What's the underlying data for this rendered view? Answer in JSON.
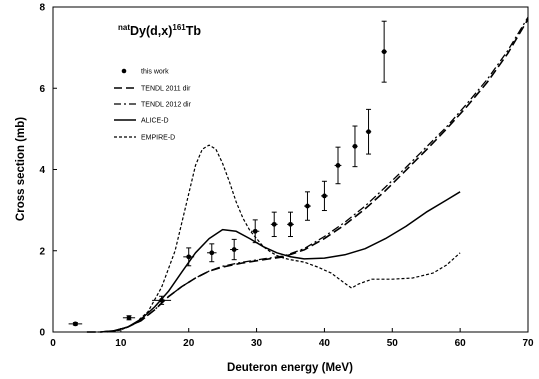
{
  "chart_data": {
    "type": "line",
    "title": {
      "pre_sup": "nat",
      "main1": "Dy(d,x)",
      "mid_sup": "161",
      "main2": "Tb"
    },
    "xlabel": "Deuteron energy (MeV)",
    "ylabel": "Cross section (mb)",
    "xlim": [
      0,
      70
    ],
    "ylim": [
      0,
      8
    ],
    "x_ticks": [
      "0",
      "10",
      "20",
      "30",
      "40",
      "50",
      "60",
      "70"
    ],
    "y_ticks": [
      "0",
      "2",
      "4",
      "6",
      "8"
    ],
    "grid": false,
    "legend_position": "upper-left",
    "legend": [
      {
        "label": "this work",
        "style": "marker"
      },
      {
        "label": "TENDL 2011 dir",
        "style": "long-dash"
      },
      {
        "label": "TENDL 2012 dir",
        "style": "dash-dot"
      },
      {
        "label": "ALICE-D",
        "style": "solid"
      },
      {
        "label": "EMPIRE-D",
        "style": "short-dash"
      }
    ],
    "measured": {
      "name": "this work",
      "points": [
        {
          "x": 3.3,
          "y": 0.2,
          "xerr": 1.0,
          "yerr": 0.03
        },
        {
          "x": 11.2,
          "y": 0.35,
          "xerr": 0.9,
          "yerr": 0.05
        },
        {
          "x": 16.0,
          "y": 0.78,
          "xerr": 1.4,
          "yerr": 0.1
        },
        {
          "x": 20.0,
          "y": 1.85,
          "xerr": 0.8,
          "yerr": 0.22
        },
        {
          "x": 23.4,
          "y": 1.95,
          "xerr": 0.7,
          "yerr": 0.22
        },
        {
          "x": 26.7,
          "y": 2.03,
          "xerr": 0.6,
          "yerr": 0.25
        },
        {
          "x": 29.8,
          "y": 2.48,
          "xerr": 0.6,
          "yerr": 0.28
        },
        {
          "x": 32.6,
          "y": 2.65,
          "xerr": 0.5,
          "yerr": 0.3
        },
        {
          "x": 35.0,
          "y": 2.65,
          "xerr": 0.5,
          "yerr": 0.3
        },
        {
          "x": 37.5,
          "y": 3.1,
          "xerr": 0.5,
          "yerr": 0.35
        },
        {
          "x": 40.0,
          "y": 3.35,
          "xerr": 0.5,
          "yerr": 0.36
        },
        {
          "x": 42.0,
          "y": 4.1,
          "xerr": 0.5,
          "yerr": 0.45
        },
        {
          "x": 44.5,
          "y": 4.57,
          "xerr": 0.4,
          "yerr": 0.5
        },
        {
          "x": 46.5,
          "y": 4.93,
          "xerr": 0.4,
          "yerr": 0.55
        },
        {
          "x": 48.8,
          "y": 6.9,
          "xerr": 0.4,
          "yerr": 0.75
        }
      ]
    },
    "series": [
      {
        "name": "TENDL 2011 dir",
        "style": "long-dash",
        "x": [
          5,
          7,
          9,
          11,
          13,
          15,
          17,
          19,
          21,
          23,
          25,
          28,
          31,
          34,
          37,
          40,
          43,
          46,
          49,
          52,
          55,
          58,
          61,
          64,
          67,
          70
        ],
        "y": [
          0.0,
          0.0,
          0.03,
          0.12,
          0.28,
          0.55,
          0.87,
          1.12,
          1.33,
          1.5,
          1.6,
          1.7,
          1.78,
          1.85,
          2.02,
          2.3,
          2.64,
          3.03,
          3.48,
          3.98,
          4.48,
          5.0,
          5.55,
          6.15,
          6.85,
          7.7
        ]
      },
      {
        "name": "TENDL 2012 dir",
        "style": "dash-dot",
        "x": [
          5,
          7,
          9,
          11,
          13,
          15,
          17,
          19,
          21,
          23,
          25,
          28,
          31,
          34,
          37,
          40,
          43,
          46,
          49,
          52,
          55,
          58,
          61,
          64,
          67,
          70
        ],
        "y": [
          0.0,
          0.0,
          0.03,
          0.12,
          0.28,
          0.55,
          0.87,
          1.12,
          1.33,
          1.5,
          1.62,
          1.72,
          1.8,
          1.87,
          2.05,
          2.35,
          2.7,
          3.1,
          3.57,
          4.05,
          4.55,
          5.05,
          5.62,
          6.22,
          6.92,
          7.75
        ]
      },
      {
        "name": "ALICE-D",
        "style": "solid",
        "x": [
          7,
          9,
          11,
          13,
          15,
          17,
          19,
          21,
          23,
          25,
          27,
          29,
          31,
          33,
          35,
          37,
          40,
          43,
          46,
          49,
          52,
          55,
          58,
          60
        ],
        "y": [
          0.0,
          0.03,
          0.12,
          0.32,
          0.62,
          1.0,
          1.48,
          1.95,
          2.3,
          2.52,
          2.48,
          2.3,
          2.1,
          1.95,
          1.85,
          1.8,
          1.82,
          1.9,
          2.05,
          2.3,
          2.6,
          2.95,
          3.25,
          3.45
        ]
      },
      {
        "name": "EMPIRE-D",
        "style": "short-dash",
        "x": [
          8,
          10,
          12,
          14,
          16,
          18,
          20,
          21,
          22,
          23,
          24,
          25,
          26,
          27,
          28,
          29,
          30,
          31,
          32,
          33,
          34,
          35,
          37,
          39,
          41,
          43,
          44,
          45,
          47,
          50,
          53,
          56,
          58,
          60
        ],
        "y": [
          0.0,
          0.05,
          0.2,
          0.5,
          1.1,
          2.0,
          3.4,
          4.1,
          4.5,
          4.6,
          4.5,
          4.15,
          3.7,
          3.2,
          2.8,
          2.5,
          2.3,
          2.1,
          1.98,
          1.88,
          1.82,
          1.78,
          1.72,
          1.6,
          1.45,
          1.2,
          1.08,
          1.18,
          1.3,
          1.3,
          1.33,
          1.45,
          1.65,
          1.95
        ]
      }
    ]
  }
}
